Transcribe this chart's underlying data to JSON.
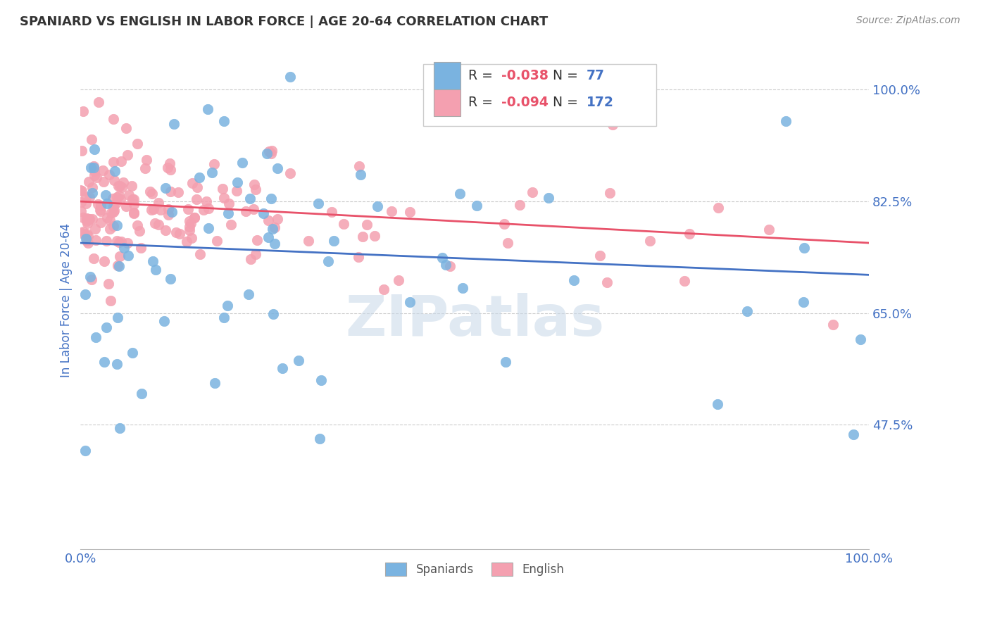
{
  "title": "SPANIARD VS ENGLISH IN LABOR FORCE | AGE 20-64 CORRELATION CHART",
  "source_text": "Source: ZipAtlas.com",
  "ylabel": "In Labor Force | Age 20-64",
  "xlim": [
    0.0,
    1.0
  ],
  "ylim": [
    0.28,
    1.06
  ],
  "yticks": [
    0.475,
    0.65,
    0.825,
    1.0
  ],
  "ytick_labels": [
    "47.5%",
    "65.0%",
    "82.5%",
    "100.0%"
  ],
  "xticks": [
    0.0,
    1.0
  ],
  "xtick_labels": [
    "0.0%",
    "100.0%"
  ],
  "legend_r_spaniard": "-0.038",
  "legend_n_spaniard": "77",
  "legend_r_english": "-0.094",
  "legend_n_english": "172",
  "spaniard_color": "#7ab3e0",
  "english_color": "#f4a0b0",
  "spaniard_line_color": "#4472c4",
  "english_line_color": "#e8526a",
  "watermark_text": "ZIPatlas",
  "watermark_color": "#c8d8e8",
  "background_color": "#ffffff",
  "grid_color": "#cccccc",
  "title_color": "#333333",
  "axis_label_color": "#4472c4",
  "tick_label_color": "#4472c4",
  "sp_line_x0": 0.0,
  "sp_line_x1": 1.0,
  "sp_line_y0": 0.76,
  "sp_line_y1": 0.71,
  "en_line_x0": 0.0,
  "en_line_x1": 1.0,
  "en_line_y0": 0.825,
  "en_line_y1": 0.76
}
